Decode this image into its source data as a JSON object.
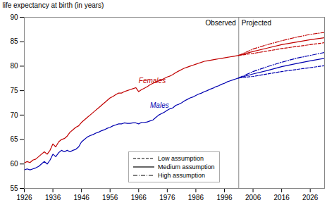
{
  "chart_data": {
    "type": "line",
    "ylabel": "life expectancy at birth (in years)",
    "xlim": [
      1926,
      2031
    ],
    "ylim": [
      55,
      90
    ],
    "xticks": [
      1926,
      1936,
      1946,
      1956,
      1966,
      1976,
      1986,
      1996,
      2006,
      2016,
      2026
    ],
    "yticks": [
      55,
      60,
      65,
      70,
      75,
      80,
      85,
      90
    ],
    "legend": "lower center",
    "vlines": [
      2001
    ],
    "annotations": [
      {
        "text": "Observed",
        "x": 2001,
        "side": "left"
      },
      {
        "text": "Projected",
        "x": 2001,
        "side": "right"
      },
      {
        "text": "Females",
        "x": 1966,
        "y": 76.5,
        "color": "#c00000"
      },
      {
        "text": "Males",
        "x": 1970,
        "y": 71.5,
        "color": "#0000b0"
      }
    ],
    "series": [
      {
        "name": "Females",
        "color": "#c00000",
        "x": [
          1926,
          1927,
          1928,
          1929,
          1930,
          1931,
          1932,
          1933,
          1934,
          1935,
          1936,
          1937,
          1938,
          1939,
          1940,
          1941,
          1942,
          1943,
          1944,
          1945,
          1946,
          1947,
          1948,
          1949,
          1950,
          1951,
          1952,
          1953,
          1954,
          1955,
          1956,
          1957,
          1958,
          1959,
          1960,
          1961,
          1962,
          1963,
          1964,
          1965,
          1966,
          1967,
          1968,
          1969,
          1970,
          1971,
          1972,
          1973,
          1974,
          1975,
          1976,
          1977,
          1978,
          1979,
          1980,
          1981,
          1982,
          1983,
          1984,
          1985,
          1986,
          1987,
          1988,
          1989,
          1990,
          1991,
          1992,
          1993,
          1994,
          1995,
          1996,
          1997,
          1998,
          1999,
          2000,
          2001
        ],
        "values": [
          60.2,
          60.5,
          60.3,
          60.8,
          61.0,
          61.5,
          62.0,
          62.5,
          62.0,
          62.8,
          64.1,
          63.5,
          64.5,
          65.0,
          65.2,
          65.7,
          66.5,
          67.0,
          67.5,
          67.8,
          68.5,
          69.0,
          69.5,
          70.0,
          70.5,
          71.0,
          71.5,
          72.0,
          72.5,
          73.0,
          73.5,
          73.8,
          74.2,
          74.5,
          74.5,
          74.8,
          75.0,
          75.2,
          75.4,
          75.6,
          74.8,
          75.2,
          75.5,
          75.8,
          76.2,
          76.5,
          76.8,
          77.0,
          77.2,
          77.5,
          77.8,
          78.0,
          78.3,
          78.7,
          79.0,
          79.3,
          79.6,
          79.8,
          80.0,
          80.2,
          80.4,
          80.6,
          80.8,
          81.0,
          81.1,
          81.2,
          81.3,
          81.4,
          81.5,
          81.6,
          81.7,
          81.8,
          81.9,
          82.0,
          82.1,
          82.2
        ]
      },
      {
        "name": "Males",
        "color": "#0000b0",
        "x": [
          1926,
          1927,
          1928,
          1929,
          1930,
          1931,
          1932,
          1933,
          1934,
          1935,
          1936,
          1937,
          1938,
          1939,
          1940,
          1941,
          1942,
          1943,
          1944,
          1945,
          1946,
          1947,
          1948,
          1949,
          1950,
          1951,
          1952,
          1953,
          1954,
          1955,
          1956,
          1957,
          1958,
          1959,
          1960,
          1961,
          1962,
          1963,
          1964,
          1965,
          1966,
          1967,
          1968,
          1969,
          1970,
          1971,
          1972,
          1973,
          1974,
          1975,
          1976,
          1977,
          1978,
          1979,
          1980,
          1981,
          1982,
          1983,
          1984,
          1985,
          1986,
          1987,
          1988,
          1989,
          1990,
          1991,
          1992,
          1993,
          1994,
          1995,
          1996,
          1997,
          1998,
          1999,
          2000,
          2001
        ],
        "values": [
          58.8,
          59.0,
          58.8,
          59.0,
          59.2,
          59.5,
          60.0,
          60.5,
          60.0,
          60.8,
          62.0,
          61.5,
          62.3,
          62.8,
          62.5,
          62.8,
          62.5,
          62.8,
          63.0,
          63.5,
          64.5,
          65.0,
          65.5,
          65.8,
          66.0,
          66.3,
          66.5,
          66.8,
          67.0,
          67.3,
          67.5,
          67.8,
          68.0,
          68.2,
          68.2,
          68.4,
          68.3,
          68.3,
          68.4,
          68.4,
          68.2,
          68.5,
          68.5,
          68.6,
          68.8,
          69.0,
          69.5,
          70.0,
          70.3,
          70.6,
          71.0,
          71.3,
          71.5,
          72.0,
          72.2,
          72.5,
          72.9,
          73.2,
          73.5,
          73.7,
          74.0,
          74.3,
          74.5,
          74.8,
          75.0,
          75.3,
          75.5,
          75.8,
          76.0,
          76.3,
          76.5,
          76.8,
          77.0,
          77.2,
          77.4,
          77.6
        ]
      },
      {
        "name": "Low assumption",
        "color": "#c00000",
        "line_style": "dashed",
        "x": [
          2001,
          2006,
          2011,
          2016,
          2021,
          2026,
          2031
        ],
        "values": [
          82.2,
          82.6,
          83.1,
          83.6,
          84.0,
          84.4,
          84.8
        ]
      },
      {
        "name": "Medium assumption",
        "color": "#c00000",
        "line_style": "solid",
        "x": [
          2001,
          2006,
          2011,
          2016,
          2021,
          2026,
          2031
        ],
        "values": [
          82.2,
          83.0,
          83.7,
          84.4,
          84.9,
          85.4,
          85.8
        ]
      },
      {
        "name": "High assumption",
        "color": "#c00000",
        "line_style": "dashdot",
        "x": [
          2001,
          2006,
          2011,
          2016,
          2021,
          2026,
          2031
        ],
        "values": [
          82.2,
          83.5,
          84.4,
          85.2,
          85.9,
          86.5,
          86.9
        ]
      },
      {
        "name": "Low assumption",
        "color": "#0000b0",
        "line_style": "dashed",
        "x": [
          2001,
          2006,
          2011,
          2016,
          2021,
          2026,
          2031
        ],
        "values": [
          77.6,
          77.9,
          78.4,
          78.9,
          79.3,
          79.7,
          80.1
        ]
      },
      {
        "name": "Medium assumption",
        "color": "#0000b0",
        "line_style": "solid",
        "x": [
          2001,
          2006,
          2011,
          2016,
          2021,
          2026,
          2031
        ],
        "values": [
          77.6,
          78.4,
          79.1,
          79.9,
          80.5,
          81.1,
          81.6
        ]
      },
      {
        "name": "High assumption",
        "color": "#0000b0",
        "line_style": "dashdot",
        "x": [
          2001,
          2006,
          2011,
          2016,
          2021,
          2026,
          2031
        ],
        "values": [
          77.6,
          78.9,
          79.9,
          80.8,
          81.6,
          82.2,
          82.8
        ]
      }
    ]
  }
}
